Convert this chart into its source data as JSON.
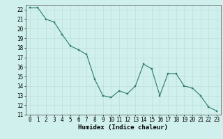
{
  "x": [
    0,
    1,
    2,
    3,
    4,
    5,
    6,
    7,
    8,
    9,
    10,
    11,
    12,
    13,
    14,
    15,
    16,
    17,
    18,
    19,
    20,
    21,
    22,
    23
  ],
  "y": [
    22.2,
    22.2,
    21.0,
    20.7,
    19.4,
    18.2,
    17.8,
    17.3,
    14.7,
    13.0,
    12.8,
    13.5,
    13.2,
    14.0,
    16.3,
    15.8,
    13.0,
    15.3,
    15.3,
    14.0,
    13.8,
    13.0,
    11.8,
    11.4
  ],
  "line_color": "#2d7a6a",
  "marker_color": "#2d7a6a",
  "bg_color": "#cff0ec",
  "grid_color": "#b8dbd6",
  "xlabel": "Humidex (Indice chaleur)",
  "xlim": [
    -0.5,
    23.5
  ],
  "ylim": [
    11,
    22.5
  ],
  "yticks": [
    11,
    12,
    13,
    14,
    15,
    16,
    17,
    18,
    19,
    20,
    21,
    22
  ],
  "xticks": [
    0,
    1,
    2,
    3,
    4,
    5,
    6,
    7,
    8,
    9,
    10,
    11,
    12,
    13,
    14,
    15,
    16,
    17,
    18,
    19,
    20,
    21,
    22,
    23
  ],
  "tick_fontsize": 5.5,
  "label_fontsize": 6.5
}
